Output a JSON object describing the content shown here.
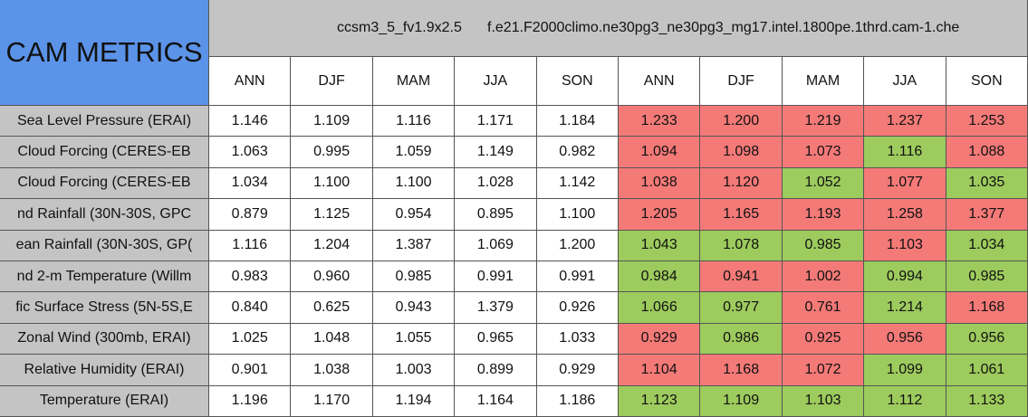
{
  "header": {
    "title": "CAM METRICS",
    "groups": [
      "ccsm3_5_fv1.9x2.5",
      "f.e21.F2000climo.ne30pg3_ne30pg3_mg17.intel.1800pe.1thrd.cam-1.che"
    ]
  },
  "table": {
    "columns": [
      "ANN",
      "DJF",
      "MAM",
      "JJA",
      "SON",
      "ANN",
      "DJF",
      "MAM",
      "JJA",
      "SON"
    ],
    "row_labels": [
      "Sea Level Pressure (ERAI)",
      "Cloud Forcing (CERES-EB",
      "Cloud Forcing (CERES-EB",
      "nd Rainfall (30N-30S, GPC",
      "ean Rainfall (30N-30S, GP(",
      "nd 2-m Temperature (Willm",
      "fic Surface Stress (5N-5S,E",
      "Zonal Wind (300mb, ERAI)",
      "Relative Humidity (ERAI)",
      "Temperature (ERAI)"
    ],
    "rows": [
      [
        "1.146",
        "1.109",
        "1.116",
        "1.171",
        "1.184",
        "1.233",
        "1.200",
        "1.219",
        "1.237",
        "1.253"
      ],
      [
        "1.063",
        "0.995",
        "1.059",
        "1.149",
        "0.982",
        "1.094",
        "1.098",
        "1.073",
        "1.116",
        "1.088"
      ],
      [
        "1.034",
        "1.100",
        "1.100",
        "1.028",
        "1.142",
        "1.038",
        "1.120",
        "1.052",
        "1.077",
        "1.035"
      ],
      [
        "0.879",
        "1.125",
        "0.954",
        "0.895",
        "1.100",
        "1.205",
        "1.165",
        "1.193",
        "1.258",
        "1.377"
      ],
      [
        "1.116",
        "1.204",
        "1.387",
        "1.069",
        "1.200",
        "1.043",
        "1.078",
        "0.985",
        "1.103",
        "1.034"
      ],
      [
        "0.983",
        "0.960",
        "0.985",
        "0.991",
        "0.991",
        "0.984",
        "0.941",
        "1.002",
        "0.994",
        "0.985"
      ],
      [
        "0.840",
        "0.625",
        "0.943",
        "1.379",
        "0.926",
        "1.066",
        "0.977",
        "0.761",
        "1.214",
        "1.168"
      ],
      [
        "1.025",
        "1.048",
        "1.055",
        "0.965",
        "1.033",
        "0.929",
        "0.986",
        "0.925",
        "0.956",
        "0.956"
      ],
      [
        "0.901",
        "1.038",
        "1.003",
        "0.899",
        "0.929",
        "1.104",
        "1.168",
        "1.072",
        "1.099",
        "1.061"
      ],
      [
        "1.196",
        "1.170",
        "1.194",
        "1.164",
        "1.186",
        "1.123",
        "1.109",
        "1.103",
        "1.112",
        "1.133"
      ]
    ],
    "cell_colors": [
      [
        "#fff",
        "#fff",
        "#fff",
        "#fff",
        "#fff",
        "#f47a78",
        "#f47a78",
        "#f47a78",
        "#f47a78",
        "#f47a78"
      ],
      [
        "#fff",
        "#fff",
        "#fff",
        "#fff",
        "#fff",
        "#f47a78",
        "#f47a78",
        "#f47a78",
        "#9dcb5d",
        "#f47a78"
      ],
      [
        "#fff",
        "#fff",
        "#fff",
        "#fff",
        "#fff",
        "#f47a78",
        "#f47a78",
        "#9dcb5d",
        "#f47a78",
        "#9dcb5d"
      ],
      [
        "#fff",
        "#fff",
        "#fff",
        "#fff",
        "#fff",
        "#f47a78",
        "#f47a78",
        "#f47a78",
        "#f47a78",
        "#f47a78"
      ],
      [
        "#fff",
        "#fff",
        "#fff",
        "#fff",
        "#fff",
        "#9dcb5d",
        "#9dcb5d",
        "#9dcb5d",
        "#f47a78",
        "#9dcb5d"
      ],
      [
        "#fff",
        "#fff",
        "#fff",
        "#fff",
        "#fff",
        "#9dcb5d",
        "#f47a78",
        "#f47a78",
        "#9dcb5d",
        "#9dcb5d"
      ],
      [
        "#fff",
        "#fff",
        "#fff",
        "#fff",
        "#fff",
        "#9dcb5d",
        "#9dcb5d",
        "#f47a78",
        "#9dcb5d",
        "#f47a78"
      ],
      [
        "#fff",
        "#fff",
        "#fff",
        "#fff",
        "#fff",
        "#f47a78",
        "#9dcb5d",
        "#f47a78",
        "#f47a78",
        "#9dcb5d"
      ],
      [
        "#fff",
        "#fff",
        "#fff",
        "#fff",
        "#fff",
        "#f47a78",
        "#f47a78",
        "#f47a78",
        "#9dcb5d",
        "#9dcb5d"
      ],
      [
        "#fff",
        "#fff",
        "#fff",
        "#fff",
        "#fff",
        "#9dcb5d",
        "#9dcb5d",
        "#9dcb5d",
        "#9dcb5d",
        "#9dcb5d"
      ]
    ]
  }
}
